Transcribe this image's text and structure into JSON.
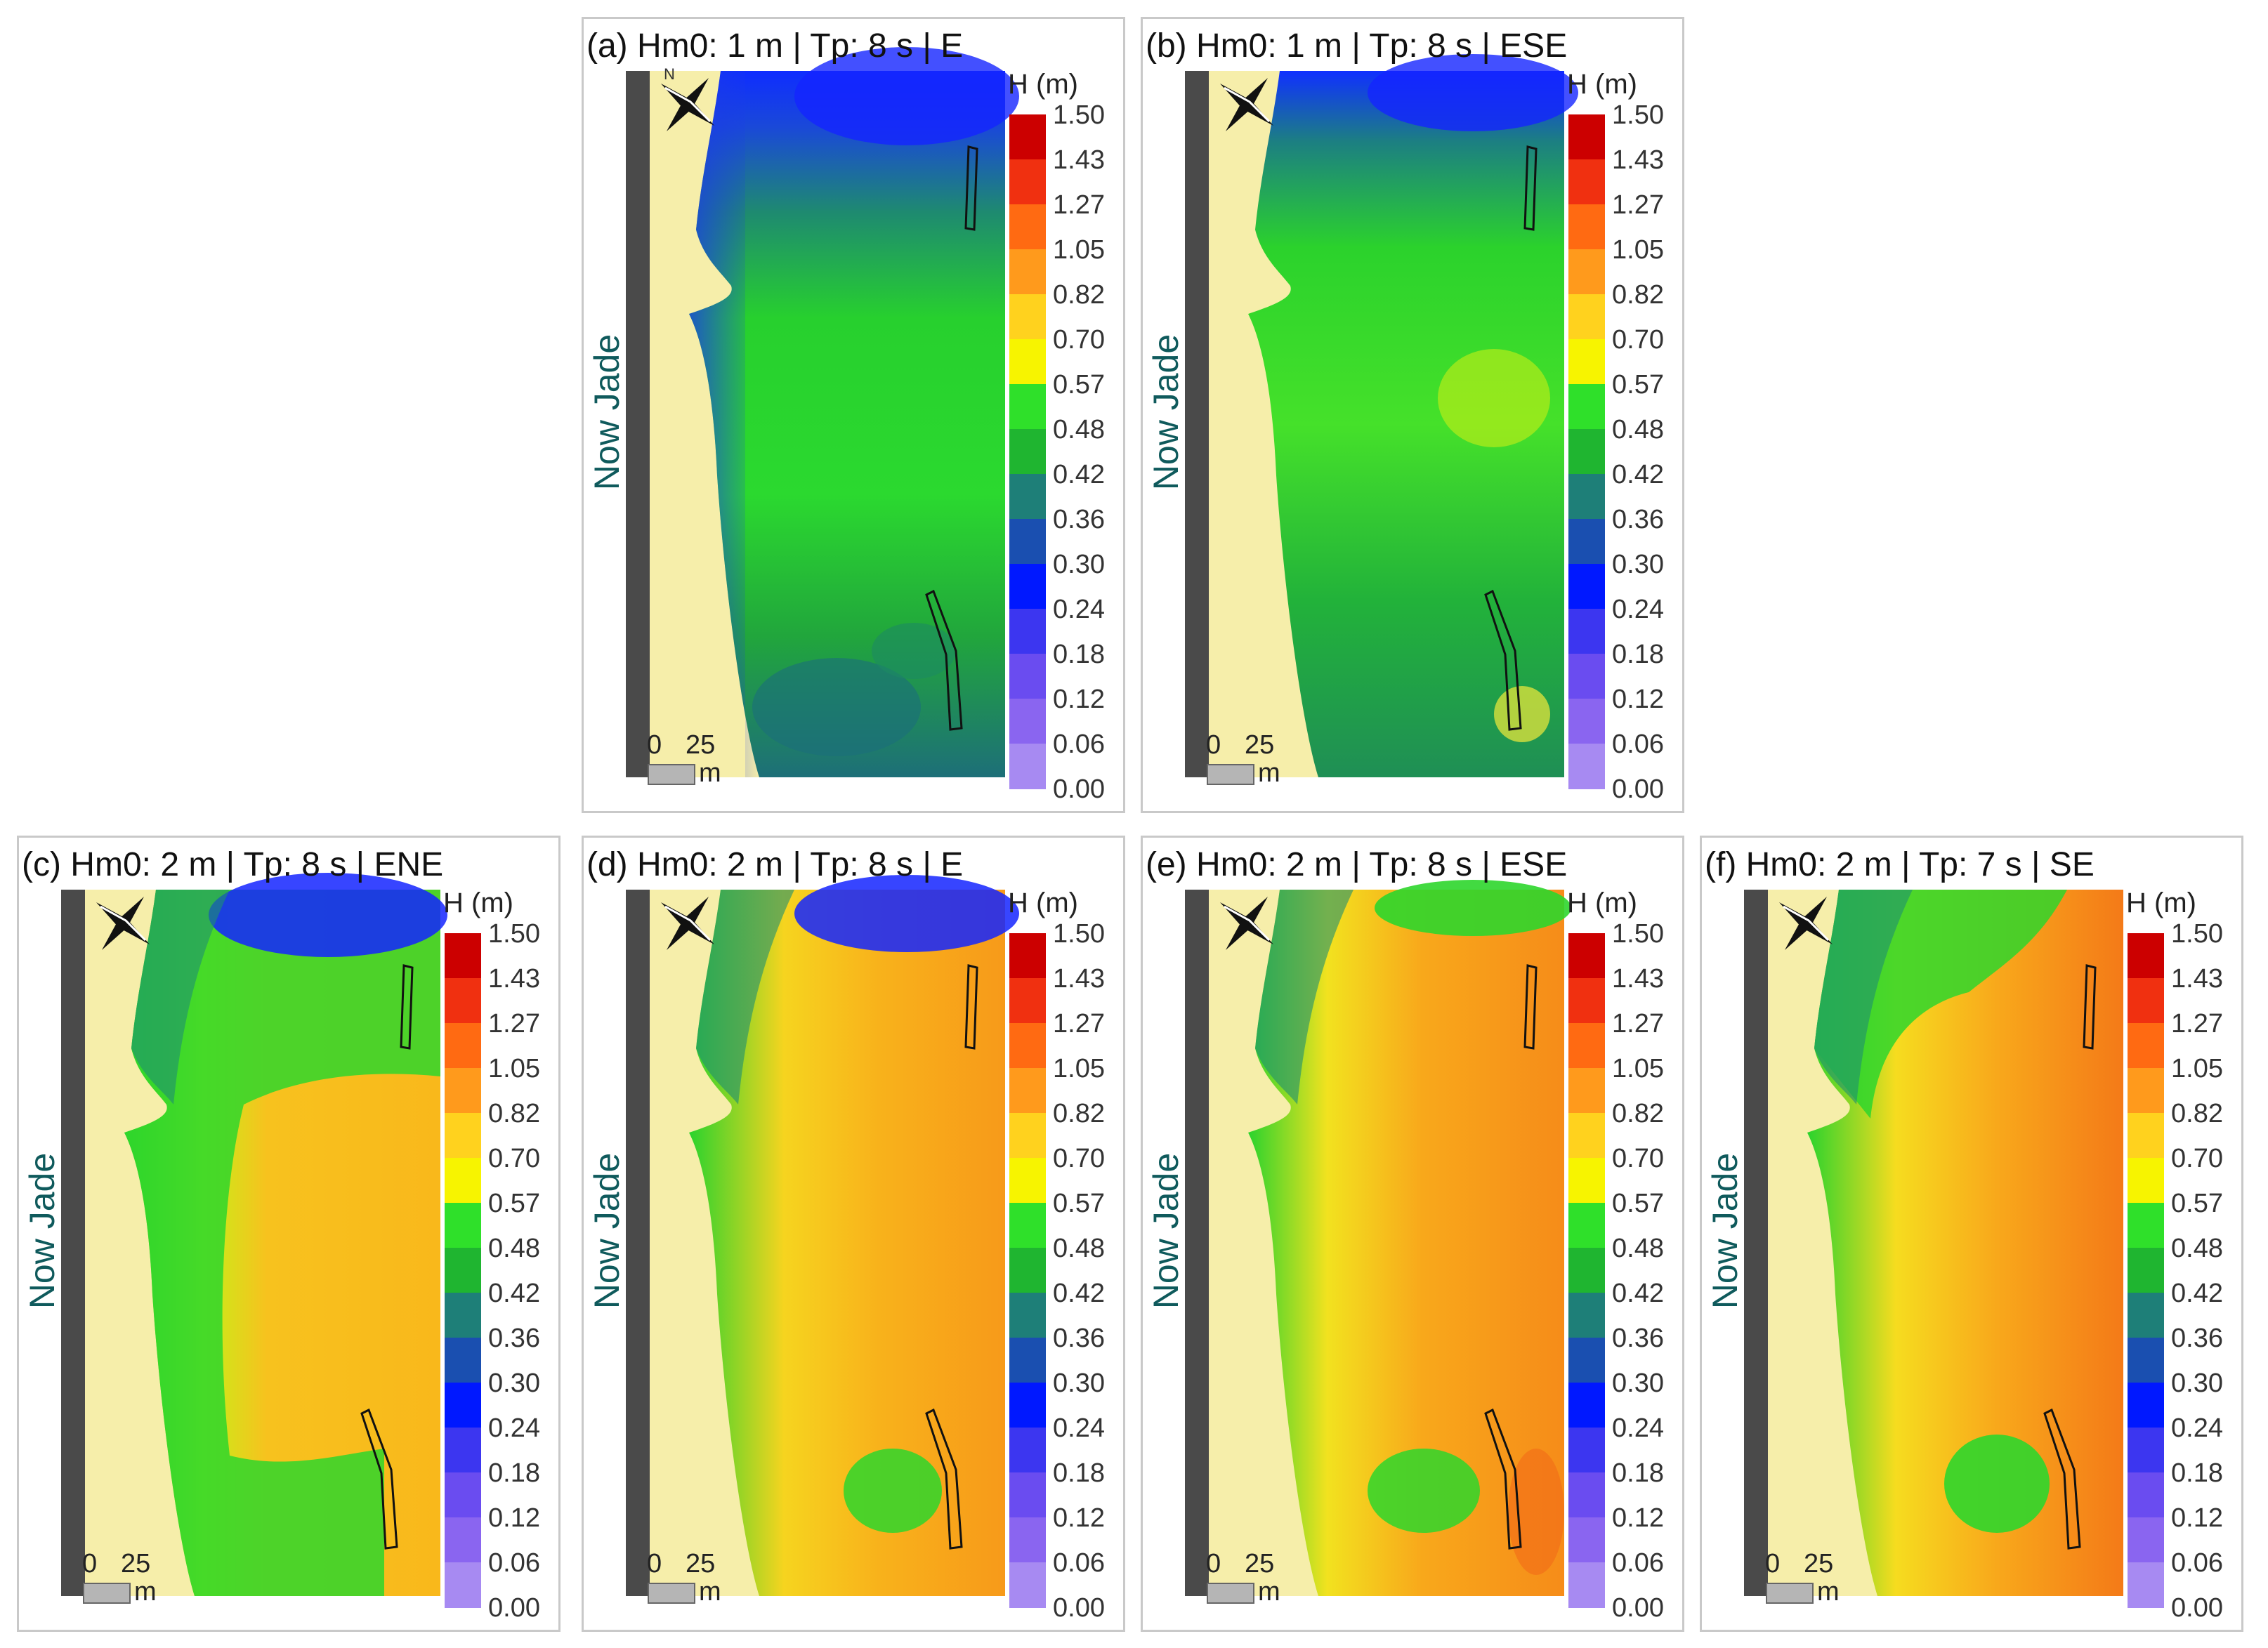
{
  "figure": {
    "legend_title": "H (m)",
    "legend_ticks": [
      "1.50",
      "1.43",
      "1.27",
      "1.05",
      "0.82",
      "0.70",
      "0.57",
      "0.48",
      "0.42",
      "0.36",
      "0.30",
      "0.24",
      "0.18",
      "0.12",
      "0.06",
      "0.00"
    ],
    "legend_colors": [
      "#cc0000",
      "#f03010",
      "#ff6a12",
      "#ff9a1c",
      "#ffd21e",
      "#f7f400",
      "#2fe02a",
      "#1fb530",
      "#1e7f78",
      "#1a4fb0",
      "#0018ff",
      "#3c36f0",
      "#6a4cf0",
      "#8a65f0",
      "#a78af2",
      "#cfbcf8"
    ],
    "site_label": "Now Jade",
    "scale_label_start": "0",
    "scale_label_end": "25",
    "scale_unit": "m",
    "colors": {
      "land": "#f6eeaa",
      "dike": "#4a4a4a",
      "water_deep_blue": "#1633ff",
      "panel_border": "#c9c9c9"
    }
  },
  "panels": [
    {
      "id": "a",
      "title": "(a) Hm0: 1 m | Tp: 8 s | E",
      "wave_height_m": 1,
      "peak_period_s": 8,
      "direction": "E"
    },
    {
      "id": "b",
      "title": "(b) Hm0: 1 m | Tp: 8 s | ESE",
      "wave_height_m": 1,
      "peak_period_s": 8,
      "direction": "ESE"
    },
    {
      "id": "c",
      "title": "(c) Hm0: 2 m | Tp: 8 s | ENE",
      "wave_height_m": 2,
      "peak_period_s": 8,
      "direction": "ENE"
    },
    {
      "id": "d",
      "title": "(d) Hm0: 2 m | Tp: 8 s | E",
      "wave_height_m": 2,
      "peak_period_s": 8,
      "direction": "E"
    },
    {
      "id": "e",
      "title": "(e) Hm0: 2 m | Tp: 8 s | ESE",
      "wave_height_m": 2,
      "peak_period_s": 8,
      "direction": "ESE"
    },
    {
      "id": "f",
      "title": "(f) Hm0: 2 m | Tp: 7 s | SE",
      "wave_height_m": 2,
      "peak_period_s": 7,
      "direction": "SE"
    }
  ]
}
